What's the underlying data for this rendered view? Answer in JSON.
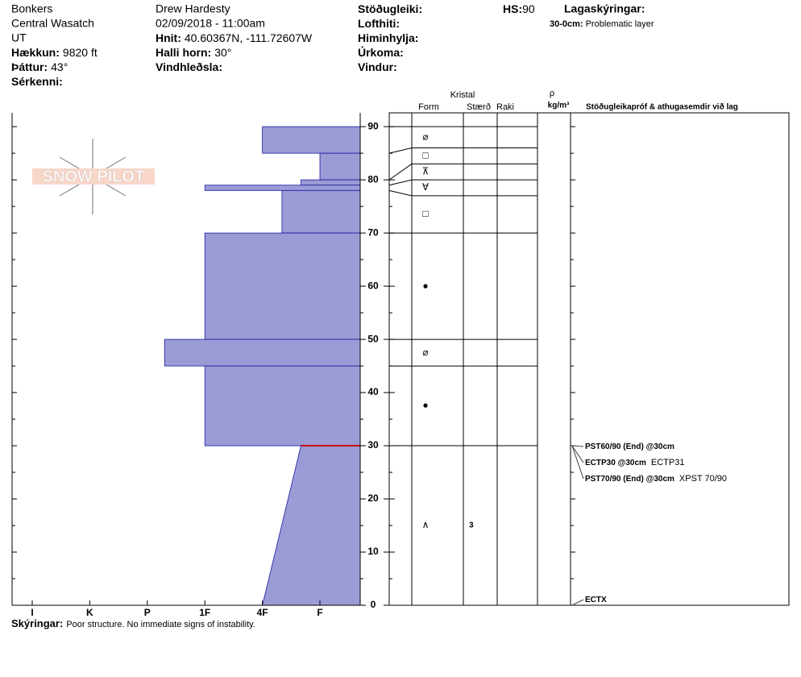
{
  "header": {
    "site": "Bonkers",
    "range": "Central Wasatch",
    "state": "UT",
    "elevation": {
      "label": "Hækkun:",
      "value": "9820 ft"
    },
    "aspect": {
      "label": "Þáttur:",
      "value": "43°"
    },
    "features": {
      "label": "Sérkenni:"
    },
    "observer": "Drew Hardesty",
    "datetime": "02/09/2018 - 11:00am",
    "coords": {
      "label": "Hnit:",
      "value": "40.60367N, -111.72607W"
    },
    "slope": {
      "label": "Halli horn:",
      "value": "30°"
    },
    "wind_loading": {
      "label": "Vindhleðsla:"
    },
    "stability": {
      "label": "Stöðugleiki:"
    },
    "air_temp": {
      "label": "Lofthiti:"
    },
    "sky": {
      "label": "Himinhylja:"
    },
    "precip": {
      "label": "Úrkoma:"
    },
    "wind": {
      "label": "Vindur:"
    },
    "hs": {
      "label": "HS:",
      "value": 90
    },
    "legend_title": "Lagaskýringar:",
    "legend_item": {
      "label": "30-0cm:",
      "value": "Problematic layer"
    }
  },
  "logo": "SNOW PILOT",
  "chart_data": {
    "type": "snow_profile",
    "depth_lim": [
      0,
      92.6
    ],
    "depth_ticks": [
      0,
      10,
      20,
      30,
      40,
      50,
      60,
      70,
      80,
      90
    ],
    "hardness_lim": [
      0.3,
      6.35
    ],
    "hardness_ticks": [
      {
        "value": 6,
        "label": "I"
      },
      {
        "value": 5,
        "label": "K"
      },
      {
        "value": 4,
        "label": "P"
      },
      {
        "value": 3,
        "label": "1F"
      },
      {
        "value": 2,
        "label": "4F"
      },
      {
        "value": 1,
        "label": "F"
      }
    ],
    "color": "#9b9bd6",
    "layers": [
      {
        "top": 90,
        "bottom": 85,
        "hardness": 2
      },
      {
        "top": 85,
        "bottom": 80,
        "hardness": 1
      },
      {
        "top": 80,
        "bottom": 79,
        "hardness": 1.33
      },
      {
        "top": 79,
        "bottom": 78,
        "hardness": 3
      },
      {
        "top": 78,
        "bottom": 70,
        "hardness": 1.66
      },
      {
        "top": 70,
        "bottom": 50,
        "hardness": 3
      },
      {
        "top": 50,
        "bottom": 45,
        "hardness": 3.7
      },
      {
        "top": 45,
        "bottom": 30,
        "hardness": 3
      },
      {
        "top": 30,
        "bottom": 0,
        "hardness": 1.33,
        "hardness_bottom": 2
      }
    ],
    "problem_layer": {
      "top": 30,
      "bottom": 0,
      "color": "#cc0000"
    },
    "grains": [
      {
        "top": 90,
        "bottom": 86,
        "form": "⌀"
      },
      {
        "top": 86,
        "bottom": 83,
        "form": "□"
      },
      {
        "top": 83,
        "bottom": 80,
        "form": "⊼"
      },
      {
        "top": 80,
        "bottom": 77,
        "form": "∀"
      },
      {
        "top": 77,
        "bottom": 70,
        "form": "□"
      },
      {
        "top": 70,
        "bottom": 50,
        "form": "●"
      },
      {
        "top": 50,
        "bottom": 45,
        "form": "⌀"
      },
      {
        "top": 45,
        "bottom": 30,
        "form": "●"
      },
      {
        "top": 30,
        "bottom": 0,
        "form": "∧",
        "size": 3
      }
    ],
    "columns": {
      "crystal": "Kristal",
      "form": "Form",
      "size": "Stærð",
      "moisture": "Raki",
      "density": "ρ",
      "density_unit": "kg/m³",
      "tests": "Stöðugleikapróf & athugasemdir við lag"
    },
    "tests": [
      {
        "name": "PST60/90 (End) @30cm",
        "depth": 30
      },
      {
        "name": "ECTP30 @30cm",
        "note": "ECTP31",
        "depth": 30
      },
      {
        "name": "PST70/90 (End) @30cm",
        "note": "XPST 70/90",
        "depth": 30
      },
      {
        "name": "ECTX",
        "depth": 0
      }
    ]
  },
  "footer": {
    "label": "Skýringar:",
    "value": "Poor structure.  No immediate signs of instability."
  }
}
